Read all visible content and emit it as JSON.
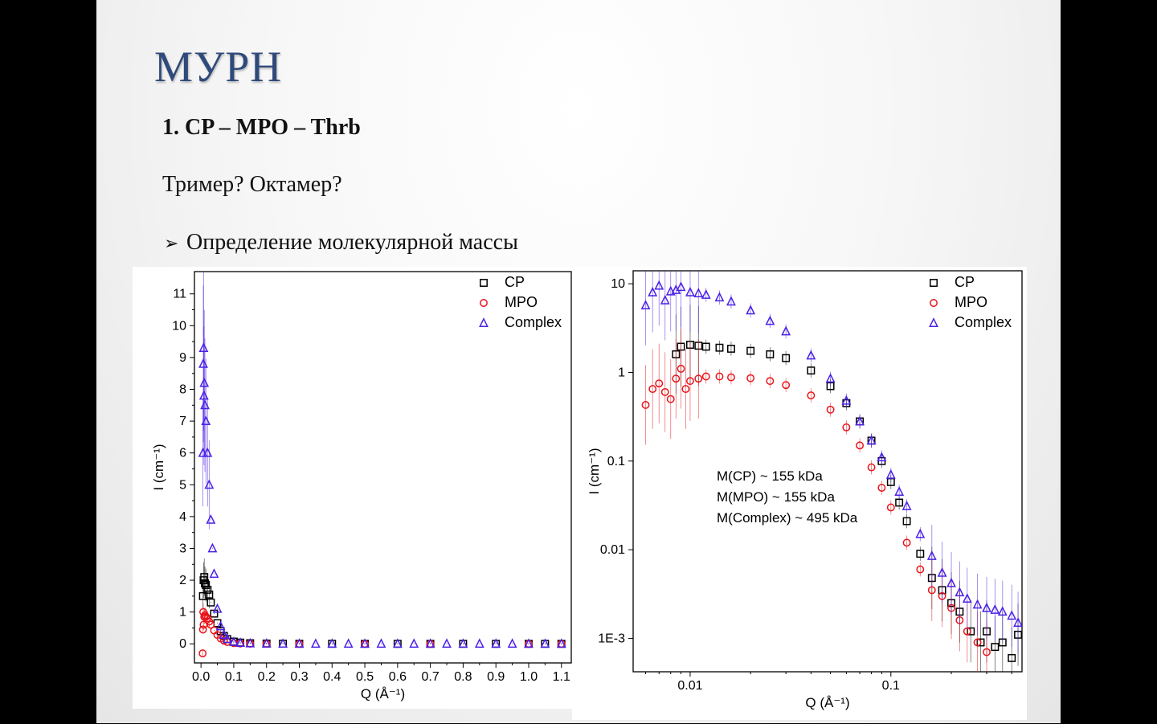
{
  "slide": {
    "title": "МУРН",
    "line1": "1. CP – MPO – Thrb",
    "line2": "Тример? Октамер?",
    "bullet_symbol": "➢",
    "line3": "Определение молекулярной массы"
  },
  "colors": {
    "CP": "#000000",
    "MPO": "#e8141a",
    "Complex": "#4a20e6",
    "title": "#2f4a7a"
  },
  "chart_data": [
    {
      "type": "scatter",
      "scale": "linear",
      "xlabel": "Q (Å⁻¹)",
      "ylabel": "I (cm⁻¹)",
      "xlim": [
        -0.02,
        1.13
      ],
      "ylim": [
        -0.6,
        11.7
      ],
      "xticks": [
        0.0,
        0.1,
        0.2,
        0.3,
        0.4,
        0.5,
        0.6,
        0.7,
        0.8,
        0.9,
        1.0,
        1.1
      ],
      "xtick_labels": [
        "0.0",
        "0.1",
        "0.2",
        "0.3",
        "0.4",
        "0.5",
        "0.6",
        "0.7",
        "0.8",
        "0.9",
        "1.0",
        "1.1"
      ],
      "yticks": [
        0,
        1,
        2,
        3,
        4,
        5,
        6,
        7,
        8,
        9,
        10,
        11
      ],
      "ytick_labels": [
        "0",
        "1",
        "2",
        "3",
        "4",
        "5",
        "6",
        "7",
        "8",
        "9",
        "10",
        "11"
      ],
      "legend": [
        "CP",
        "MPO",
        "Complex"
      ],
      "legend_position": "top-right",
      "series": [
        {
          "name": "CP",
          "marker": "square",
          "color": "#000000",
          "x": [
            0.006,
            0.008,
            0.01,
            0.012,
            0.015,
            0.02,
            0.025,
            0.03,
            0.04,
            0.05,
            0.06,
            0.07,
            0.08,
            0.1,
            0.12,
            0.15,
            0.2,
            0.25,
            0.3,
            0.4,
            0.5,
            0.6,
            0.7,
            0.8,
            0.9,
            1.0,
            1.05,
            1.1
          ],
          "y": [
            1.5,
            2.0,
            2.1,
            1.9,
            1.85,
            1.7,
            1.55,
            1.3,
            0.95,
            0.65,
            0.4,
            0.25,
            0.15,
            0.07,
            0.04,
            0.02,
            0.01,
            0.005,
            0.003,
            0.002,
            0.001,
            0.001,
            0.001,
            0.001,
            0.001,
            0.001,
            0.001,
            0.001
          ]
        },
        {
          "name": "MPO",
          "marker": "circle",
          "color": "#e8141a",
          "x": [
            0.005,
            0.006,
            0.007,
            0.008,
            0.01,
            0.012,
            0.015,
            0.02,
            0.025,
            0.03,
            0.04,
            0.05,
            0.06,
            0.07,
            0.08,
            0.1,
            0.12,
            0.15,
            0.2,
            0.3,
            0.5,
            0.7,
            1.0,
            1.1
          ],
          "y": [
            -0.3,
            0.45,
            1.0,
            0.6,
            0.85,
            0.9,
            0.85,
            0.8,
            0.7,
            0.6,
            0.42,
            0.28,
            0.17,
            0.1,
            0.06,
            0.025,
            0.012,
            0.005,
            0.002,
            0.001,
            0.001,
            0.001,
            0.001,
            0.001
          ]
        },
        {
          "name": "Complex",
          "marker": "triangle",
          "color": "#4a20e6",
          "x": [
            0.006,
            0.007,
            0.008,
            0.009,
            0.01,
            0.012,
            0.015,
            0.02,
            0.025,
            0.03,
            0.035,
            0.04,
            0.05,
            0.06,
            0.07,
            0.08,
            0.1,
            0.12,
            0.15,
            0.2,
            0.25,
            0.3,
            0.35,
            0.4,
            0.45,
            0.5,
            0.55,
            0.6,
            0.65,
            0.7,
            0.75,
            0.8,
            0.85,
            0.9,
            0.95,
            1.0,
            1.05,
            1.1
          ],
          "y": [
            6.0,
            8.8,
            9.3,
            7.8,
            8.2,
            7.5,
            7.0,
            6.0,
            5.0,
            3.9,
            3.0,
            2.2,
            1.1,
            0.55,
            0.28,
            0.15,
            0.06,
            0.03,
            0.015,
            0.008,
            0.004,
            0.003,
            0.002,
            0.002,
            0.002,
            0.002,
            0.002,
            0.002,
            0.002,
            0.002,
            0.002,
            0.002,
            0.002,
            0.002,
            0.002,
            0.002,
            0.002,
            0.002
          ]
        }
      ]
    },
    {
      "type": "scatter",
      "scale": "log-log",
      "xlabel": "Q (Å⁻¹)",
      "ylabel": "I (cm⁻¹)",
      "xlim": [
        0.0052,
        0.45
      ],
      "ylim": [
        0.00042,
        14
      ],
      "xticks": [
        0.01,
        0.1
      ],
      "xtick_labels": [
        "0.01",
        "0.1"
      ],
      "yticks": [
        0.001,
        0.01,
        0.1,
        1,
        10
      ],
      "ytick_labels": [
        "1E-3",
        "0.01",
        "0.1",
        "1",
        "10"
      ],
      "legend": [
        "CP",
        "MPO",
        "Complex"
      ],
      "legend_position": "top-right",
      "annotations": [
        "M(CP) ~ 155 kDa",
        "M(MPO) ~ 155 kDa",
        "M(Complex) ~ 495 kDa"
      ],
      "series": [
        {
          "name": "CP",
          "marker": "square",
          "color": "#000000",
          "x": [
            0.0085,
            0.009,
            0.01,
            0.011,
            0.012,
            0.014,
            0.016,
            0.02,
            0.025,
            0.03,
            0.04,
            0.05,
            0.06,
            0.07,
            0.08,
            0.09,
            0.1,
            0.11,
            0.12,
            0.14,
            0.16,
            0.18,
            0.2,
            0.22,
            0.25,
            0.28,
            0.3,
            0.33,
            0.36,
            0.4,
            0.43
          ],
          "y": [
            1.6,
            1.95,
            2.05,
            2.0,
            1.95,
            1.9,
            1.85,
            1.75,
            1.6,
            1.45,
            1.05,
            0.7,
            0.45,
            0.28,
            0.17,
            0.1,
            0.058,
            0.034,
            0.021,
            0.009,
            0.0048,
            0.0035,
            0.0025,
            0.002,
            0.0012,
            0.0009,
            0.0012,
            0.0008,
            0.0009,
            0.0006,
            0.0011
          ]
        },
        {
          "name": "MPO",
          "marker": "circle",
          "color": "#e8141a",
          "x": [
            0.006,
            0.0065,
            0.007,
            0.0075,
            0.008,
            0.0085,
            0.009,
            0.0095,
            0.01,
            0.011,
            0.012,
            0.014,
            0.016,
            0.02,
            0.025,
            0.03,
            0.04,
            0.05,
            0.06,
            0.07,
            0.08,
            0.09,
            0.1,
            0.12,
            0.14,
            0.16,
            0.18,
            0.2,
            0.22,
            0.24,
            0.27,
            0.3
          ],
          "y": [
            0.43,
            0.65,
            0.75,
            0.6,
            0.5,
            0.85,
            1.1,
            0.65,
            0.8,
            0.85,
            0.9,
            0.9,
            0.88,
            0.86,
            0.8,
            0.72,
            0.55,
            0.38,
            0.24,
            0.15,
            0.085,
            0.05,
            0.03,
            0.012,
            0.006,
            0.0035,
            0.003,
            0.0022,
            0.0016,
            0.0012,
            0.0009,
            0.0007
          ]
        },
        {
          "name": "Complex",
          "marker": "triangle",
          "color": "#4a20e6",
          "x": [
            0.006,
            0.0065,
            0.007,
            0.0075,
            0.008,
            0.0085,
            0.009,
            0.01,
            0.011,
            0.012,
            0.014,
            0.016,
            0.02,
            0.025,
            0.03,
            0.04,
            0.05,
            0.06,
            0.07,
            0.08,
            0.09,
            0.1,
            0.11,
            0.12,
            0.14,
            0.16,
            0.18,
            0.2,
            0.22,
            0.24,
            0.27,
            0.3,
            0.33,
            0.36,
            0.4,
            0.43
          ],
          "y": [
            5.7,
            8.0,
            9.5,
            6.5,
            8.2,
            8.5,
            9.2,
            8.0,
            7.8,
            7.5,
            7.0,
            6.3,
            5.0,
            3.8,
            2.9,
            1.55,
            0.85,
            0.48,
            0.28,
            0.17,
            0.11,
            0.07,
            0.045,
            0.031,
            0.015,
            0.0085,
            0.0055,
            0.0042,
            0.0033,
            0.0028,
            0.0024,
            0.0022,
            0.0021,
            0.002,
            0.0018,
            0.0015
          ]
        }
      ]
    }
  ]
}
